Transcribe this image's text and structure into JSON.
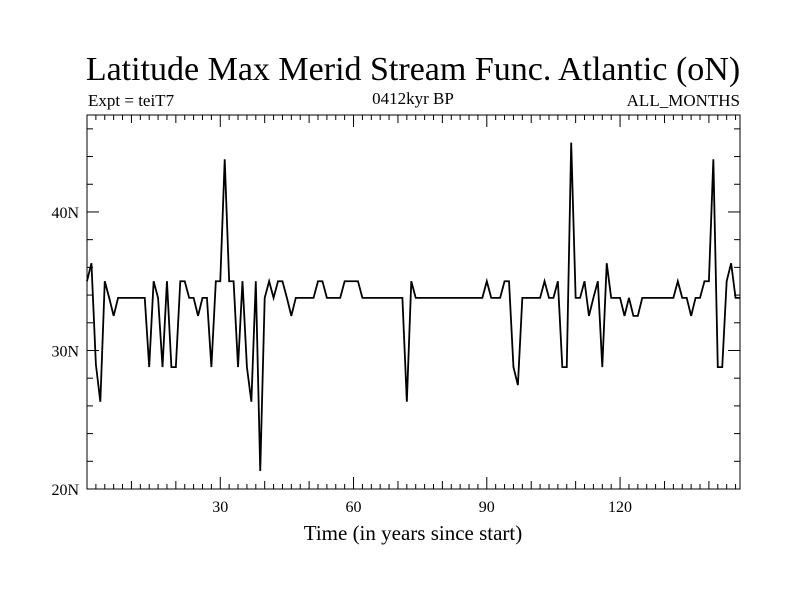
{
  "chart_data": {
    "type": "line",
    "title": "Latitude Max Merid Stream Func. Atlantic (oN)",
    "subtitle_left": "Expt = teiT7",
    "subtitle_center": "0412kyr BP",
    "subtitle_right": "ALL_MONTHS",
    "xlabel": "Time (in years since start)",
    "ylabel": "",
    "xlim": [
      0,
      147
    ],
    "ylim": [
      20,
      47
    ],
    "x_ticks": [
      30,
      60,
      90,
      120
    ],
    "x_tick_labels": [
      "30",
      "60",
      "90",
      "120"
    ],
    "y_ticks": [
      20,
      30,
      40
    ],
    "y_tick_labels": [
      "20N",
      "30N",
      "40N"
    ],
    "grid": false,
    "series": [
      {
        "color": "#000000",
        "x": [
          0,
          1,
          2,
          3,
          4,
          5,
          6,
          7,
          8,
          9,
          10,
          11,
          12,
          13,
          14,
          15,
          16,
          17,
          18,
          19,
          20,
          21,
          22,
          23,
          24,
          25,
          26,
          27,
          28,
          29,
          30,
          31,
          32,
          33,
          34,
          35,
          36,
          37,
          38,
          39,
          40,
          41,
          42,
          43,
          44,
          45,
          46,
          47,
          48,
          49,
          50,
          51,
          52,
          53,
          54,
          55,
          56,
          57,
          58,
          59,
          60,
          61,
          62,
          63,
          64,
          65,
          66,
          67,
          68,
          69,
          70,
          71,
          72,
          73,
          74,
          75,
          76,
          77,
          78,
          79,
          80,
          81,
          82,
          83,
          84,
          85,
          86,
          87,
          88,
          89,
          90,
          91,
          92,
          93,
          94,
          95,
          96,
          97,
          98,
          99,
          100,
          101,
          102,
          103,
          104,
          105,
          106,
          107,
          108,
          109,
          110,
          111,
          112,
          113,
          114,
          115,
          116,
          117,
          118,
          119,
          120,
          121,
          122,
          123,
          124,
          125,
          126,
          127,
          128,
          129,
          130,
          131,
          132,
          133,
          134,
          135,
          136,
          137,
          138,
          139,
          140,
          141,
          142,
          143,
          144,
          145,
          146,
          147
        ],
        "y": [
          35,
          36.3,
          29,
          26.3,
          35,
          33.8,
          32.5,
          33.8,
          33.8,
          33.8,
          33.8,
          33.8,
          33.8,
          33.8,
          28.8,
          35,
          33.8,
          28.8,
          35,
          28.8,
          28.8,
          35,
          35,
          33.8,
          33.8,
          32.5,
          33.8,
          33.8,
          28.8,
          35,
          35,
          43.8,
          35,
          35,
          28.8,
          35,
          28.8,
          26.3,
          35,
          21.3,
          33.8,
          35,
          33.8,
          35,
          35,
          33.8,
          32.5,
          33.8,
          33.8,
          33.8,
          33.8,
          33.8,
          35,
          35,
          33.8,
          33.8,
          33.8,
          33.8,
          35,
          35,
          35,
          35,
          33.8,
          33.8,
          33.8,
          33.8,
          33.8,
          33.8,
          33.8,
          33.8,
          33.8,
          33.8,
          26.3,
          35,
          33.8,
          33.8,
          33.8,
          33.8,
          33.8,
          33.8,
          33.8,
          33.8,
          33.8,
          33.8,
          33.8,
          33.8,
          33.8,
          33.8,
          33.8,
          33.8,
          35,
          33.8,
          33.8,
          33.8,
          35,
          35,
          28.8,
          27.5,
          33.8,
          33.8,
          33.8,
          33.8,
          33.8,
          35,
          33.8,
          33.8,
          35,
          28.8,
          28.8,
          45,
          33.8,
          33.8,
          35,
          32.5,
          33.8,
          35,
          28.8,
          36.3,
          33.8,
          33.8,
          33.8,
          32.5,
          33.8,
          32.5,
          32.5,
          33.8,
          33.8,
          33.8,
          33.8,
          33.8,
          33.8,
          33.8,
          33.8,
          35,
          33.8,
          33.8,
          32.5,
          33.8,
          33.8,
          35,
          35,
          43.8,
          28.8,
          28.8,
          35,
          36.3,
          33.8,
          33.8
        ]
      }
    ]
  }
}
